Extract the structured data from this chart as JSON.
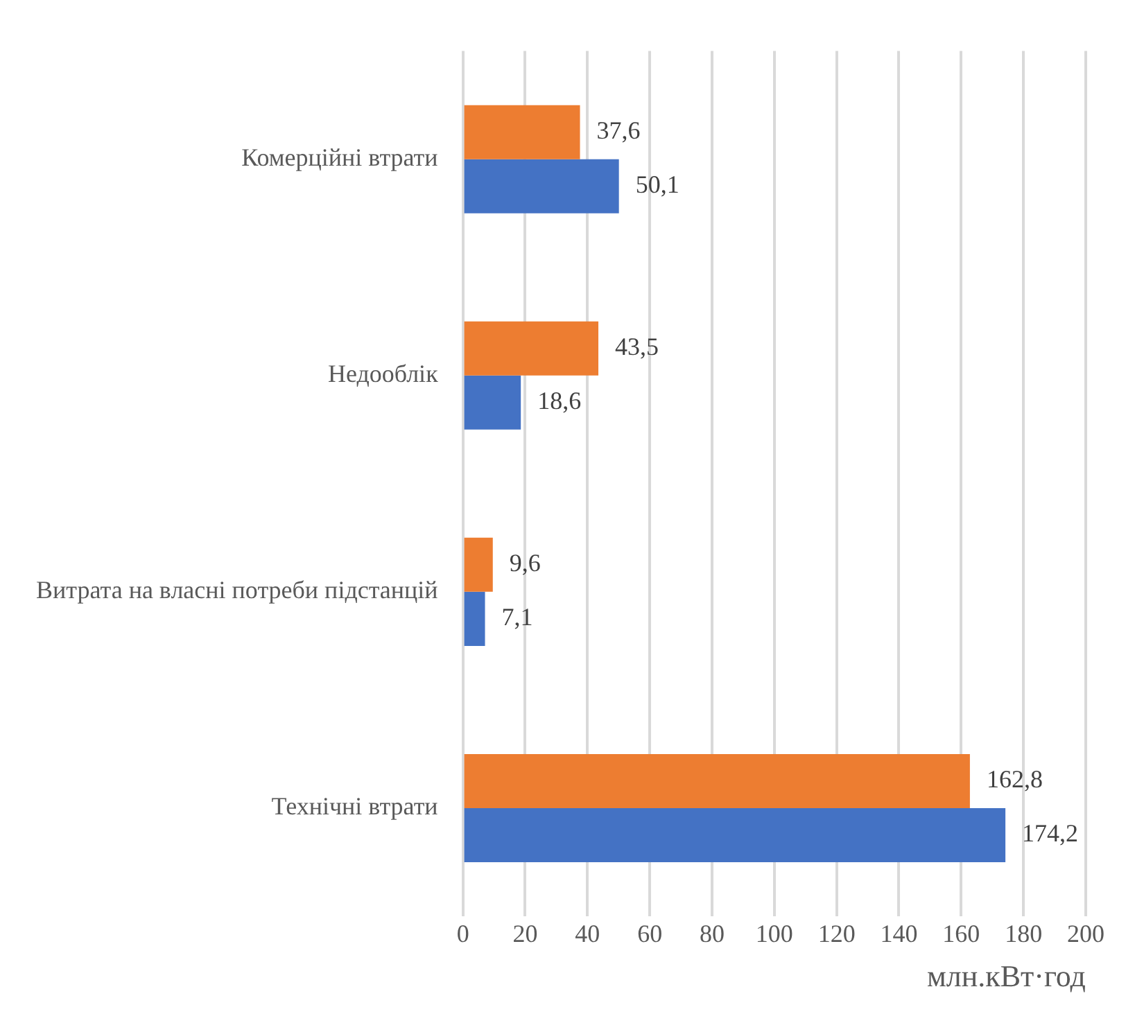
{
  "chart_data": {
    "type": "bar",
    "orientation": "horizontal",
    "categories": [
      "Комерційні втрати",
      "Недооблік",
      "Витрата на власні потреби підстанцій",
      "Технічні втрати"
    ],
    "series": [
      {
        "color": "#ed7d31",
        "values": [
          37.6,
          43.5,
          9.6,
          162.8
        ],
        "value_labels": [
          "37,6",
          "43,5",
          "9,6",
          "162,8"
        ]
      },
      {
        "color": "#4472c4",
        "values": [
          50.1,
          18.6,
          7.1,
          174.2
        ],
        "value_labels": [
          "50,1",
          "18,6",
          "7,1",
          "174,2"
        ]
      }
    ],
    "xlabel": "млн.кВт·год",
    "xlim": [
      0,
      200
    ],
    "xticks": [
      0,
      20,
      40,
      60,
      80,
      100,
      120,
      140,
      160,
      180,
      200
    ],
    "grid": "x",
    "legend": false
  }
}
